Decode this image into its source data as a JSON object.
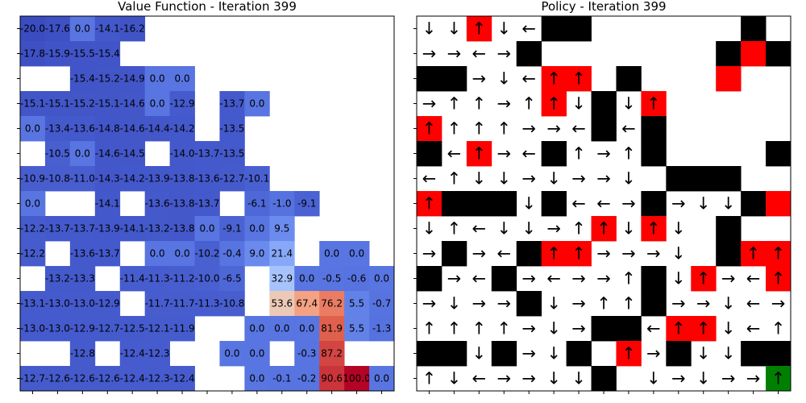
{
  "chart_data": [
    {
      "type": "heatmap",
      "title": "Value Function - Iteration 399",
      "rows": 15,
      "cols": 15,
      "colormap": "coolwarm",
      "empty_cells_color": "#ffffff",
      "grid": false,
      "cells": [
        [
          -20.0,
          -17.6,
          0.0,
          -14.1,
          -16.2,
          null,
          null,
          null,
          null,
          null,
          null,
          null,
          null,
          null,
          null
        ],
        [
          -17.8,
          -15.9,
          -15.5,
          -15.4,
          null,
          null,
          null,
          null,
          null,
          null,
          null,
          null,
          null,
          null,
          null
        ],
        [
          null,
          null,
          -15.4,
          -15.2,
          -14.9,
          0.0,
          0.0,
          null,
          null,
          null,
          null,
          null,
          null,
          null,
          null
        ],
        [
          -15.1,
          -15.1,
          -15.2,
          -15.1,
          -14.6,
          0.0,
          -12.9,
          null,
          -13.7,
          0.0,
          null,
          null,
          null,
          null,
          null
        ],
        [
          0.0,
          -13.4,
          -13.6,
          -14.8,
          -14.6,
          -14.4,
          -14.2,
          null,
          -13.5,
          null,
          null,
          null,
          null,
          null,
          null
        ],
        [
          null,
          -10.5,
          0.0,
          -14.6,
          -14.5,
          null,
          -14.0,
          -13.7,
          -13.5,
          null,
          null,
          null,
          null,
          null,
          null
        ],
        [
          -10.9,
          -10.8,
          -11.0,
          -14.3,
          -14.2,
          -13.9,
          -13.8,
          -13.6,
          -12.7,
          -10.1,
          null,
          null,
          null,
          null,
          null
        ],
        [
          0.0,
          null,
          null,
          -14.1,
          null,
          -13.6,
          -13.8,
          -13.7,
          null,
          -6.1,
          -1.0,
          -9.1,
          null,
          null,
          null
        ],
        [
          -12.2,
          -13.7,
          -13.7,
          -13.9,
          -14.1,
          -13.2,
          -13.8,
          0.0,
          -9.1,
          0.0,
          9.5,
          null,
          null,
          null,
          null
        ],
        [
          -12.2,
          null,
          -13.6,
          -13.7,
          null,
          0.0,
          0.0,
          -10.2,
          -0.4,
          9.0,
          21.4,
          null,
          0.0,
          0.0,
          null
        ],
        [
          null,
          -13.2,
          -13.3,
          null,
          -11.4,
          -11.3,
          -11.2,
          -10.0,
          -6.5,
          null,
          32.9,
          0.0,
          -0.5,
          -0.6,
          0.0
        ],
        [
          -13.1,
          -13.0,
          -13.0,
          -12.9,
          null,
          -11.7,
          -11.7,
          -11.3,
          -10.8,
          null,
          53.6,
          67.4,
          76.2,
          5.5,
          -0.7
        ],
        [
          -13.0,
          -13.0,
          -12.9,
          -12.7,
          -12.5,
          -12.1,
          -11.9,
          null,
          null,
          0.0,
          0.0,
          0.0,
          81.9,
          5.5,
          -1.3
        ],
        [
          null,
          null,
          -12.8,
          null,
          -12.4,
          -12.3,
          null,
          null,
          0.0,
          0.0,
          null,
          -0.3,
          87.2,
          null,
          null
        ],
        [
          -12.7,
          -12.6,
          -12.6,
          -12.6,
          -12.4,
          -12.3,
          -12.4,
          null,
          null,
          0.0,
          -0.1,
          -0.2,
          90.6,
          100.0,
          0.0
        ]
      ]
    },
    {
      "type": "table",
      "title": "Policy - Iteration 399",
      "rows": 15,
      "cols": 15,
      "legend": {
        "W": "wall",
        "R": "red cell",
        "G": "goal"
      },
      "colors": {
        "wall": "#000000",
        "red": "#ff0000",
        "goal": "#008000",
        "empty": "#ffffff"
      },
      "arrow_glyphs": {
        "U": "↑",
        "D": "↓",
        "L": "←",
        "R": "→"
      },
      "cells": [
        [
          "D",
          "D",
          "R:U",
          "D",
          "L",
          "W",
          "W",
          "",
          "",
          "",
          "",
          "",
          "",
          "W",
          ""
        ],
        [
          "R",
          "R",
          "L",
          "R",
          "W",
          "",
          "",
          "",
          "",
          "",
          "",
          "",
          "W",
          "R:",
          "W"
        ],
        [
          "W",
          "W",
          "R",
          "D",
          "L",
          "R:U",
          "R:U",
          "",
          "W",
          "",
          "",
          "",
          "R:",
          "",
          ""
        ],
        [
          "R",
          "U",
          "U",
          "R",
          "U",
          "R:U",
          "D",
          "W",
          "D",
          "R:U",
          "",
          "",
          "",
          "",
          ""
        ],
        [
          "R:U",
          "U",
          "U",
          "U",
          "R",
          "R",
          "L",
          "W",
          "L",
          "W",
          "",
          "",
          "",
          "",
          ""
        ],
        [
          "W",
          "L",
          "R:U",
          "R",
          "L",
          "W",
          "U",
          "R",
          "U",
          "W",
          "",
          "",
          "",
          "",
          "W"
        ],
        [
          "L",
          "U",
          "D",
          "D",
          "R",
          "D",
          "R",
          "R",
          "D",
          "",
          "W",
          "W",
          "W",
          "",
          ""
        ],
        [
          "R:U",
          "W",
          "W",
          "W",
          "D",
          "W",
          "L",
          "L",
          "R",
          "W",
          "R",
          "D",
          "D",
          "W",
          "R:"
        ],
        [
          "D",
          "U",
          "L",
          "D",
          "D",
          "R",
          "U",
          "R:U",
          "D",
          "R:U",
          "D",
          "",
          "W",
          "",
          ""
        ],
        [
          "R",
          "W",
          "R",
          "L",
          "W",
          "R:U",
          "R:U",
          "R",
          "R",
          "R",
          "D",
          "",
          "W",
          "R:U",
          "R:U"
        ],
        [
          "W",
          "R",
          "L",
          "W",
          "R",
          "L",
          "R",
          "R",
          "U",
          "W",
          "D",
          "R:U",
          "R",
          "L",
          "R:U"
        ],
        [
          "R",
          "D",
          "R",
          "R",
          "W",
          "D",
          "R",
          "U",
          "U",
          "W",
          "R",
          "R",
          "D",
          "L",
          "R"
        ],
        [
          "U",
          "U",
          "U",
          "U",
          "R",
          "D",
          "R",
          "W",
          "W",
          "L",
          "R:U",
          "R:U",
          "D",
          "L",
          "U"
        ],
        [
          "W",
          "W",
          "D",
          "W",
          "R",
          "D",
          "W",
          "",
          "R:U",
          "R",
          "W",
          "D",
          "D",
          "W",
          "W"
        ],
        [
          "U",
          "D",
          "L",
          "R",
          "R",
          "D",
          "D",
          "W",
          "",
          "D",
          "R",
          "D",
          "R",
          "R",
          "G:U"
        ]
      ]
    }
  ]
}
